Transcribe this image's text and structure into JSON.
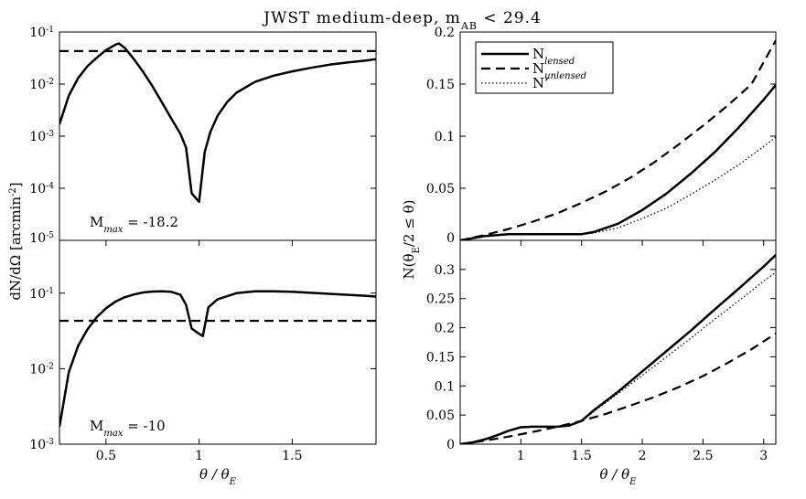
{
  "figure_title": "JWST medium-deep, m_AB < 29.4",
  "title_parts": {
    "main": "JWST medium-deep, m",
    "sub": "AB",
    "tail": " < 29.4"
  },
  "chart_data": [
    {
      "id": "top-left",
      "type": "line",
      "yscale": "log",
      "xlim": [
        0.25,
        1.95
      ],
      "ylim": [
        1e-05,
        0.1
      ],
      "xticks": [],
      "yticks": [
        {
          "v": 1e-05,
          "base": "10",
          "exp": "-5"
        },
        {
          "v": 0.0001,
          "base": "10",
          "exp": "-4"
        },
        {
          "v": 0.001,
          "base": "10",
          "exp": "-3"
        },
        {
          "v": 0.01,
          "base": "10",
          "exp": "-2"
        },
        {
          "v": 0.1,
          "base": "10",
          "exp": "-1"
        }
      ],
      "annotation": {
        "prefix": "M",
        "sub": "max",
        "suffix": " = -18.2"
      },
      "series": [
        {
          "name": "lensed",
          "style": "solid",
          "x": [
            0.25,
            0.3,
            0.35,
            0.4,
            0.45,
            0.5,
            0.55,
            0.57,
            0.6,
            0.65,
            0.7,
            0.75,
            0.8,
            0.85,
            0.9,
            0.93,
            0.96,
            1.0,
            1.03,
            1.06,
            1.1,
            1.15,
            1.2,
            1.3,
            1.4,
            1.5,
            1.6,
            1.7,
            1.8,
            1.9,
            1.95
          ],
          "y": [
            0.0017,
            0.006,
            0.013,
            0.022,
            0.032,
            0.045,
            0.057,
            0.06,
            0.05,
            0.03,
            0.017,
            0.009,
            0.0045,
            0.0022,
            0.0011,
            0.0006,
            8e-05,
            5.5e-05,
            0.0005,
            0.0012,
            0.0025,
            0.0045,
            0.0068,
            0.011,
            0.0145,
            0.0175,
            0.0205,
            0.0235,
            0.026,
            0.0285,
            0.03
          ]
        },
        {
          "name": "unlensed",
          "style": "dashed",
          "x": [
            0.25,
            1.95
          ],
          "y": [
            0.043,
            0.043
          ]
        }
      ]
    },
    {
      "id": "bottom-left",
      "type": "line",
      "yscale": "log",
      "xlim": [
        0.25,
        1.95
      ],
      "ylim": [
        0.001,
        0.5
      ],
      "xlabel": {
        "text": "θ / θ",
        "sub": "E"
      },
      "xticks": [
        0.5,
        1,
        1.5
      ],
      "yticks": [
        {
          "v": 0.001,
          "base": "10",
          "exp": "-3"
        },
        {
          "v": 0.01,
          "base": "10",
          "exp": "-2"
        },
        {
          "v": 0.1,
          "base": "10",
          "exp": "-1"
        }
      ],
      "annotation": {
        "prefix": "M",
        "sub": "max",
        "suffix": " = -10"
      },
      "series": [
        {
          "name": "lensed",
          "style": "solid",
          "x": [
            0.25,
            0.3,
            0.35,
            0.4,
            0.45,
            0.5,
            0.55,
            0.6,
            0.65,
            0.7,
            0.75,
            0.8,
            0.85,
            0.9,
            0.93,
            0.96,
            1.0,
            1.02,
            1.05,
            1.1,
            1.2,
            1.3,
            1.4,
            1.5,
            1.6,
            1.7,
            1.8,
            1.9,
            1.95
          ],
          "y": [
            0.0017,
            0.009,
            0.02,
            0.033,
            0.048,
            0.063,
            0.077,
            0.088,
            0.096,
            0.102,
            0.105,
            0.106,
            0.104,
            0.095,
            0.07,
            0.034,
            0.029,
            0.027,
            0.065,
            0.083,
            0.1,
            0.106,
            0.106,
            0.104,
            0.101,
            0.098,
            0.095,
            0.092,
            0.09
          ]
        },
        {
          "name": "unlensed",
          "style": "dashed",
          "x": [
            0.25,
            1.95
          ],
          "y": [
            0.043,
            0.043
          ]
        }
      ]
    },
    {
      "id": "top-right",
      "type": "line",
      "yscale": "linear",
      "xlim": [
        0.5,
        3.1
      ],
      "ylim": [
        0,
        0.2
      ],
      "xticks": [],
      "yticks": [
        {
          "v": 0,
          "t": "0"
        },
        {
          "v": 0.05,
          "t": "0.05"
        },
        {
          "v": 0.1,
          "t": "0.1"
        },
        {
          "v": 0.15,
          "t": "0.15"
        },
        {
          "v": 0.2,
          "t": "0.2"
        }
      ],
      "legend": {
        "position": "top-left",
        "entries": [
          {
            "style": "solid",
            "label": "N",
            "sub": "lensed"
          },
          {
            "style": "dashed",
            "label": "N",
            "sub": "unlensed"
          },
          {
            "style": "dotted",
            "label": "N’",
            "sub": ""
          }
        ]
      },
      "series": [
        {
          "name": "N_lensed",
          "style": "solid",
          "x": [
            0.5,
            0.6,
            0.7,
            0.8,
            0.9,
            1.0,
            1.2,
            1.4,
            1.5,
            1.6,
            1.8,
            2.0,
            2.2,
            2.4,
            2.6,
            2.8,
            3.0,
            3.1
          ],
          "y": [
            0,
            0.002,
            0.004,
            0.005,
            0.006,
            0.006,
            0.006,
            0.006,
            0.006,
            0.008,
            0.016,
            0.029,
            0.045,
            0.064,
            0.085,
            0.109,
            0.135,
            0.149
          ]
        },
        {
          "name": "N_unlensed",
          "style": "dashed",
          "x": [
            0.5,
            0.7,
            0.9,
            1.1,
            1.3,
            1.5,
            1.7,
            1.9,
            2.1,
            2.3,
            2.5,
            2.7,
            2.9,
            3.1
          ],
          "y": [
            0,
            0.005,
            0.011,
            0.018,
            0.026,
            0.036,
            0.047,
            0.06,
            0.075,
            0.092,
            0.11,
            0.129,
            0.15,
            0.192
          ]
        },
        {
          "name": "N_prime",
          "style": "dotted",
          "x": [
            0.5,
            0.6,
            0.7,
            0.8,
            0.9,
            1.0,
            1.2,
            1.4,
            1.5,
            1.6,
            1.8,
            2.0,
            2.2,
            2.4,
            2.6,
            2.8,
            3.0,
            3.1
          ],
          "y": [
            0,
            0.002,
            0.004,
            0.005,
            0.006,
            0.006,
            0.006,
            0.006,
            0.006,
            0.007,
            0.012,
            0.021,
            0.031,
            0.044,
            0.058,
            0.073,
            0.09,
            0.099
          ]
        }
      ]
    },
    {
      "id": "bottom-right",
      "type": "line",
      "yscale": "linear",
      "xlim": [
        0.5,
        3.1
      ],
      "ylim": [
        0,
        0.35
      ],
      "xlabel": {
        "text": "θ / θ",
        "sub": "E"
      },
      "xticks": [
        1,
        1.5,
        2,
        2.5,
        3
      ],
      "yticks": [
        {
          "v": 0,
          "t": "0"
        },
        {
          "v": 0.05,
          "t": "0.05"
        },
        {
          "v": 0.1,
          "t": "0.1"
        },
        {
          "v": 0.15,
          "t": "0.15"
        },
        {
          "v": 0.2,
          "t": "0.2"
        },
        {
          "v": 0.25,
          "t": "0.25"
        },
        {
          "v": 0.3,
          "t": "0.3"
        }
      ],
      "series": [
        {
          "name": "N_lensed",
          "style": "solid",
          "x": [
            0.5,
            0.6,
            0.7,
            0.8,
            0.9,
            1.0,
            1.1,
            1.2,
            1.3,
            1.4,
            1.5,
            1.6,
            1.8,
            2.0,
            2.2,
            2.4,
            2.6,
            2.8,
            3.0,
            3.1
          ],
          "y": [
            0,
            0.003,
            0.008,
            0.015,
            0.023,
            0.029,
            0.03,
            0.03,
            0.03,
            0.032,
            0.04,
            0.058,
            0.09,
            0.125,
            0.16,
            0.195,
            0.232,
            0.268,
            0.305,
            0.325
          ]
        },
        {
          "name": "N_unlensed",
          "style": "dashed",
          "x": [
            0.5,
            0.7,
            0.9,
            1.1,
            1.3,
            1.5,
            1.7,
            1.9,
            2.1,
            2.3,
            2.5,
            2.7,
            2.9,
            3.1
          ],
          "y": [
            0,
            0.006,
            0.013,
            0.021,
            0.03,
            0.04,
            0.052,
            0.066,
            0.081,
            0.098,
            0.117,
            0.139,
            0.163,
            0.19
          ]
        },
        {
          "name": "N_prime",
          "style": "dotted",
          "x": [
            0.5,
            0.6,
            0.7,
            0.8,
            0.9,
            1.0,
            1.1,
            1.2,
            1.3,
            1.4,
            1.5,
            1.6,
            1.8,
            2.0,
            2.2,
            2.4,
            2.6,
            2.8,
            3.0,
            3.1
          ],
          "y": [
            0,
            0.003,
            0.008,
            0.015,
            0.023,
            0.029,
            0.03,
            0.03,
            0.03,
            0.032,
            0.04,
            0.056,
            0.087,
            0.118,
            0.15,
            0.182,
            0.215,
            0.247,
            0.28,
            0.295
          ]
        }
      ]
    }
  ],
  "shared_ylabels": {
    "left": {
      "text": "dN/dΩ [arcmin",
      "sup": "-2",
      "tail": "]"
    },
    "right": {
      "text": "N(θ",
      "sub": "E",
      "tail": "/2 ≤ θ)"
    }
  }
}
